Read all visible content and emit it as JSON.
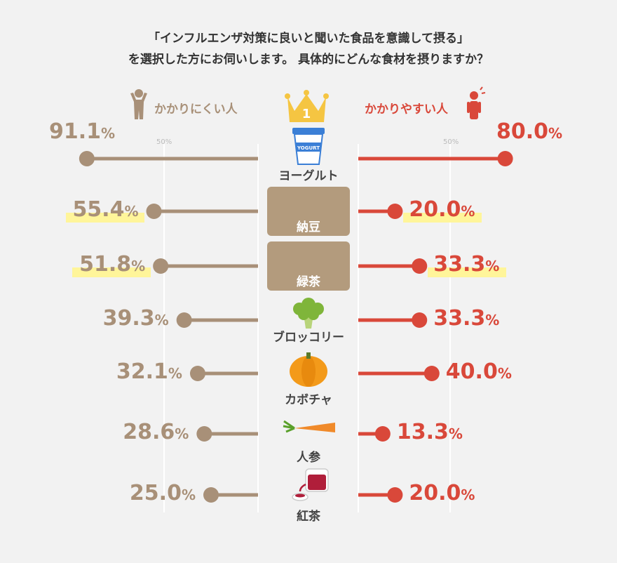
{
  "title_line1": "「インフルエンザ対策に良いと聞いた食品を意識して摂る」",
  "title_line2": "を選択した方にお伺いします。 具体的にどんな食材を摂りますか？",
  "legend_left": "かかりにくい人",
  "legend_right": "かかりやすい人",
  "rank_label": "1",
  "gridline_label": "50%",
  "yogurt_label": "YOGURT",
  "colors": {
    "left_series": "#a89078",
    "right_series": "#d9483a",
    "highlight": "#fff59a",
    "food_box": "#b39b7d",
    "crown": "#f5c542"
  },
  "chart_data": {
    "type": "bar",
    "categories": [
      "ヨーグルト",
      "納豆",
      "緑茶",
      "ブロッコリー",
      "カボチャ",
      "人参",
      "紅茶"
    ],
    "series": [
      {
        "name": "かかりにくい人",
        "values": [
          91.1,
          55.4,
          51.8,
          39.3,
          32.1,
          28.6,
          25.0
        ]
      },
      {
        "name": "かかりやすい人",
        "values": [
          80.0,
          20.0,
          33.3,
          33.3,
          40.0,
          13.3,
          20.0
        ]
      }
    ],
    "display_values": {
      "left": [
        "91.1",
        "55.4",
        "51.8",
        "39.3",
        "32.1",
        "28.6",
        "25.0"
      ],
      "right": [
        "80.0",
        "20.0",
        "33.3",
        "33.3",
        "40.0",
        "13.3",
        "20.0"
      ]
    },
    "unit": "%",
    "xlim": [
      0,
      100
    ],
    "gridlines": [
      50
    ],
    "highlighted_categories": [
      "納豆",
      "緑茶"
    ]
  }
}
